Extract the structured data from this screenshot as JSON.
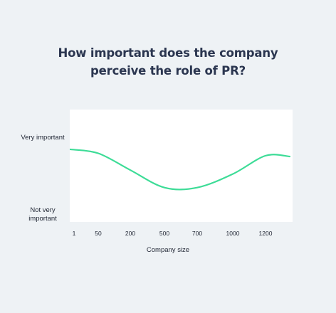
{
  "chart_data": {
    "type": "line",
    "title": [
      "How important does the company",
      "perceive the role of PR?"
    ],
    "xlabel": "Company size",
    "ylabel": "",
    "x_ticks": [
      "1",
      "50",
      "200",
      "500",
      "700",
      "1000",
      "1200"
    ],
    "y_ticks": [
      "Very important",
      "Not very important"
    ],
    "ylim": [
      0,
      1
    ],
    "grid": false,
    "color": "#3ddc97",
    "series": [
      {
        "x": [
          "1",
          "50",
          "200",
          "500",
          "700",
          "1000",
          "1200"
        ],
        "values": [
          0.84,
          0.79,
          0.58,
          0.36,
          0.36,
          0.53,
          0.76
        ]
      }
    ]
  }
}
